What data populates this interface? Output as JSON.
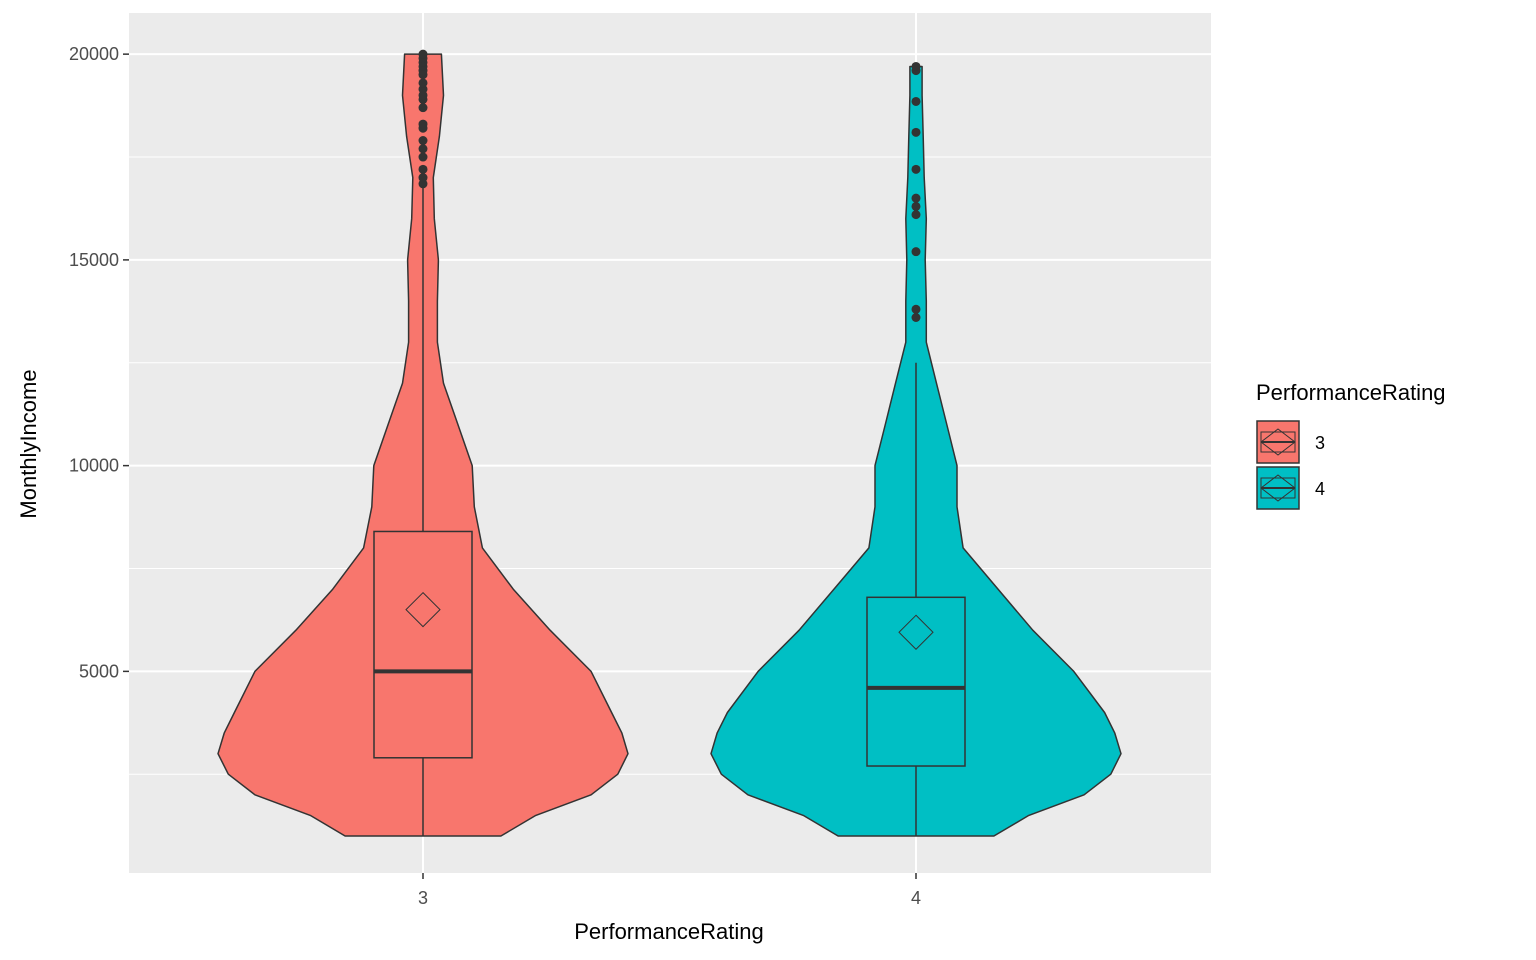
{
  "chart_data": {
    "type": "violin",
    "title": "",
    "xlabel": "PerformanceRating",
    "ylabel": "MonthlyIncome",
    "categories": [
      "3",
      "4"
    ],
    "yticks": [
      5000,
      10000,
      15000,
      20000
    ],
    "ytick_labels": [
      "5000",
      "10000",
      "15000",
      "20000"
    ],
    "ylim": [
      100,
      21000
    ],
    "grid": true,
    "legend": {
      "title": "PerformanceRating",
      "position": "right",
      "entries": [
        "3",
        "4"
      ]
    },
    "colors": {
      "3": "#F8766D",
      "4": "#00BFC4"
    },
    "series": [
      {
        "category": "3",
        "box": {
          "q1": 2900,
          "median": 5000,
          "q3": 8400,
          "whisker_low": 1000,
          "whisker_high": 16800
        },
        "mean": 6500,
        "outliers": [
          16850,
          17000,
          17200,
          17500,
          17700,
          17900,
          18200,
          18300,
          18700,
          18900,
          19000,
          19150,
          19300,
          19500,
          19600,
          19700,
          19800,
          19900,
          20000
        ],
        "violin": [
          [
            1000,
            0.38
          ],
          [
            1500,
            0.55
          ],
          [
            2000,
            0.82
          ],
          [
            2500,
            0.95
          ],
          [
            3000,
            1.0
          ],
          [
            3500,
            0.97
          ],
          [
            4000,
            0.92
          ],
          [
            5000,
            0.82
          ],
          [
            6000,
            0.62
          ],
          [
            7000,
            0.44
          ],
          [
            8000,
            0.29
          ],
          [
            9000,
            0.25
          ],
          [
            10000,
            0.24
          ],
          [
            11000,
            0.17
          ],
          [
            12000,
            0.1
          ],
          [
            13000,
            0.07
          ],
          [
            14000,
            0.07
          ],
          [
            15000,
            0.075
          ],
          [
            16000,
            0.055
          ],
          [
            17000,
            0.05
          ],
          [
            18000,
            0.08
          ],
          [
            19000,
            0.1
          ],
          [
            20000,
            0.09
          ]
        ]
      },
      {
        "category": "4",
        "box": {
          "q1": 2700,
          "median": 4600,
          "q3": 6800,
          "whisker_low": 1000,
          "whisker_high": 12500
        },
        "mean": 5950,
        "outliers": [
          13600,
          13800,
          15200,
          16100,
          16300,
          16500,
          17200,
          18100,
          18850,
          19600,
          19700
        ],
        "violin": [
          [
            1000,
            0.38
          ],
          [
            1500,
            0.55
          ],
          [
            2000,
            0.82
          ],
          [
            2500,
            0.95
          ],
          [
            3000,
            1.0
          ],
          [
            3500,
            0.97
          ],
          [
            4000,
            0.92
          ],
          [
            5000,
            0.77
          ],
          [
            6000,
            0.57
          ],
          [
            7000,
            0.4
          ],
          [
            8000,
            0.23
          ],
          [
            9000,
            0.2
          ],
          [
            10000,
            0.2
          ],
          [
            11000,
            0.15
          ],
          [
            12000,
            0.1
          ],
          [
            13000,
            0.05
          ],
          [
            14000,
            0.05
          ],
          [
            15000,
            0.045
          ],
          [
            16000,
            0.05
          ],
          [
            17000,
            0.04
          ],
          [
            18000,
            0.035
          ],
          [
            19000,
            0.03
          ],
          [
            19700,
            0.03
          ]
        ]
      }
    ]
  }
}
